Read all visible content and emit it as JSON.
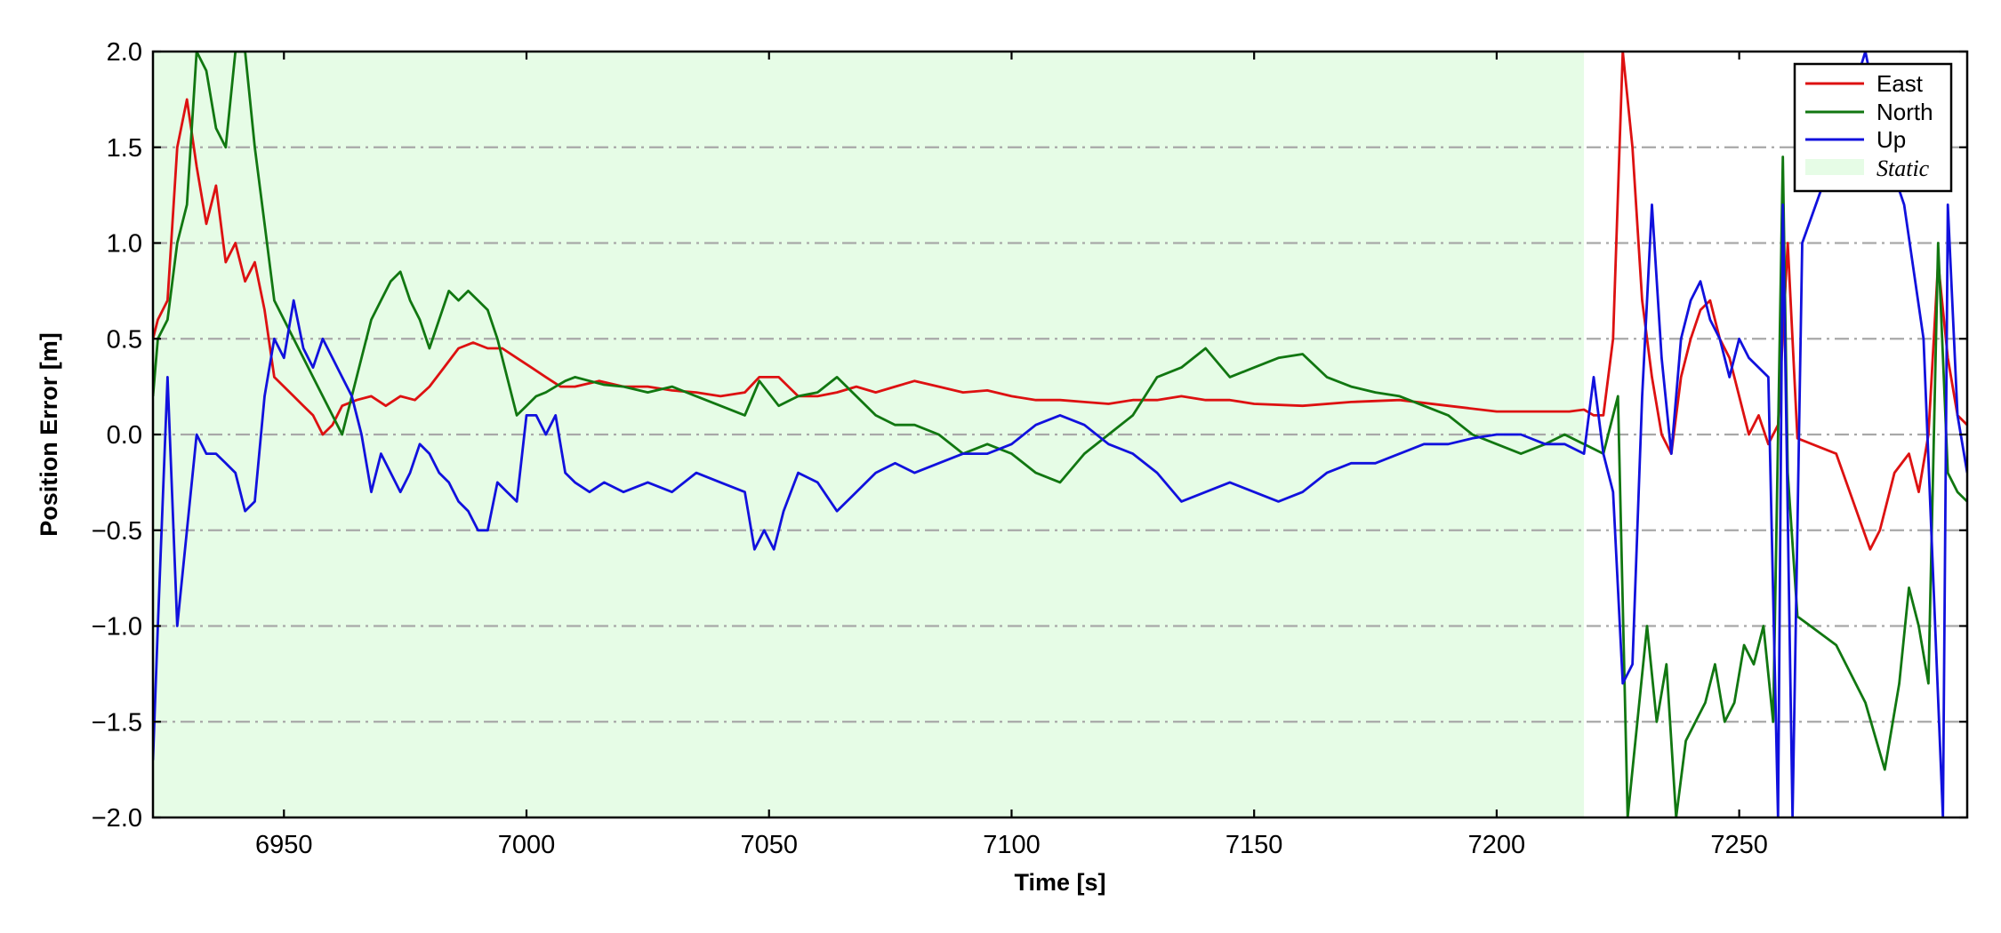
{
  "chart_data": {
    "type": "line",
    "xlabel": "Time [s]",
    "ylabel": "Position Error [m]",
    "xlim": [
      6923,
      7297
    ],
    "ylim": [
      -2.0,
      2.0
    ],
    "xticks": [
      6950,
      7000,
      7050,
      7100,
      7150,
      7200,
      7250
    ],
    "yticks": [
      -2.0,
      -1.5,
      -1.0,
      -0.5,
      0.0,
      0.5,
      1.0,
      1.5,
      2.0
    ],
    "ytick_labels": [
      "−2.0",
      "−1.5",
      "−1.0",
      "−0.5",
      "0.0",
      "0.5",
      "1.0",
      "1.5",
      "2.0"
    ],
    "grid": "horizontal dash-dot",
    "legend_position": "top-right",
    "static_region": {
      "name": "Static",
      "x": [
        6923,
        7218
      ],
      "color": "#e6fce6"
    },
    "series": [
      {
        "name": "East",
        "color": "#dd1111",
        "x": [
          6923,
          6924,
          6926,
          6928,
          6930,
          6932,
          6934,
          6936,
          6938,
          6940,
          6942,
          6944,
          6946,
          6948,
          6950,
          6952,
          6954,
          6956,
          6958,
          6960,
          6962,
          6965,
          6968,
          6971,
          6974,
          6977,
          6980,
          6983,
          6986,
          6989,
          6992,
          6995,
          6998,
          7001,
          7004,
          7007,
          7010,
          7015,
          7020,
          7025,
          7030,
          7035,
          7040,
          7045,
          7048,
          7052,
          7056,
          7060,
          7064,
          7068,
          7072,
          7076,
          7080,
          7085,
          7090,
          7095,
          7100,
          7105,
          7110,
          7115,
          7120,
          7125,
          7130,
          7135,
          7140,
          7145,
          7150,
          7160,
          7170,
          7180,
          7190,
          7200,
          7210,
          7215,
          7218,
          7220,
          7222,
          7224,
          7226,
          7228,
          7230,
          7232,
          7234,
          7236,
          7238,
          7240,
          7242,
          7244,
          7246,
          7248,
          7250,
          7252,
          7254,
          7256,
          7258,
          7260,
          7262,
          7270,
          7277,
          7279,
          7282,
          7285,
          7287,
          7289,
          7291,
          7293,
          7295,
          7297
        ],
        "y": [
          0.5,
          0.6,
          0.7,
          1.5,
          1.75,
          1.4,
          1.1,
          1.3,
          0.9,
          1.0,
          0.8,
          0.9,
          0.65,
          0.3,
          0.25,
          0.2,
          0.15,
          0.1,
          0.0,
          0.05,
          0.15,
          0.18,
          0.2,
          0.15,
          0.2,
          0.18,
          0.25,
          0.35,
          0.45,
          0.48,
          0.45,
          0.45,
          0.4,
          0.35,
          0.3,
          0.25,
          0.25,
          0.28,
          0.25,
          0.25,
          0.23,
          0.22,
          0.2,
          0.22,
          0.3,
          0.3,
          0.2,
          0.2,
          0.22,
          0.25,
          0.22,
          0.25,
          0.28,
          0.25,
          0.22,
          0.23,
          0.2,
          0.18,
          0.18,
          0.17,
          0.16,
          0.18,
          0.18,
          0.2,
          0.18,
          0.18,
          0.16,
          0.15,
          0.17,
          0.18,
          0.15,
          0.12,
          0.12,
          0.12,
          0.13,
          0.1,
          0.1,
          0.5,
          2.0,
          1.5,
          0.7,
          0.3,
          0.0,
          -0.1,
          0.3,
          0.5,
          0.65,
          0.7,
          0.5,
          0.4,
          0.2,
          0.0,
          0.1,
          -0.05,
          0.05,
          1.0,
          -0.02,
          -0.1,
          -0.6,
          -0.5,
          -0.2,
          -0.1,
          -0.3,
          0.0,
          0.9,
          0.4,
          0.1,
          0.05
        ]
      },
      {
        "name": "North",
        "color": "#117711",
        "x": [
          6923,
          6924,
          6926,
          6928,
          6930,
          6932,
          6934,
          6936,
          6938,
          6940,
          6942,
          6944,
          6946,
          6948,
          6950,
          6952,
          6954,
          6956,
          6958,
          6960,
          6962,
          6964,
          6966,
          6968,
          6970,
          6972,
          6974,
          6976,
          6978,
          6980,
          6982,
          6984,
          6986,
          6988,
          6990,
          6992,
          6994,
          6996,
          6998,
          7000,
          7002,
          7004,
          7006,
          7008,
          7010,
          7013,
          7016,
          7020,
          7025,
          7030,
          7035,
          7040,
          7045,
          7048,
          7052,
          7056,
          7060,
          7064,
          7068,
          7072,
          7076,
          7080,
          7085,
          7090,
          7095,
          7100,
          7105,
          7110,
          7115,
          7120,
          7125,
          7130,
          7135,
          7140,
          7145,
          7150,
          7155,
          7160,
          7165,
          7170,
          7175,
          7180,
          7185,
          7190,
          7195,
          7200,
          7205,
          7210,
          7214,
          7218,
          7222,
          7225,
          7227,
          7229,
          7231,
          7233,
          7235,
          7237,
          7239,
          7241,
          7243,
          7245,
          7247,
          7249,
          7251,
          7253,
          7255,
          7257,
          7259,
          7260,
          7262,
          7270,
          7276,
          7280,
          7283,
          7285,
          7287,
          7289,
          7291,
          7293,
          7295,
          7297
        ],
        "y": [
          0.2,
          0.5,
          0.6,
          1.0,
          1.2,
          2.0,
          1.9,
          1.6,
          1.5,
          2.0,
          2.0,
          1.5,
          1.1,
          0.7,
          0.6,
          0.5,
          0.4,
          0.3,
          0.2,
          0.1,
          0.0,
          0.2,
          0.4,
          0.6,
          0.7,
          0.8,
          0.85,
          0.7,
          0.6,
          0.45,
          0.6,
          0.75,
          0.7,
          0.75,
          0.7,
          0.65,
          0.5,
          0.3,
          0.1,
          0.15,
          0.2,
          0.22,
          0.25,
          0.28,
          0.3,
          0.28,
          0.26,
          0.25,
          0.22,
          0.25,
          0.2,
          0.15,
          0.1,
          0.28,
          0.15,
          0.2,
          0.22,
          0.3,
          0.2,
          0.1,
          0.05,
          0.05,
          0.0,
          -0.1,
          -0.05,
          -0.1,
          -0.2,
          -0.25,
          -0.1,
          0.0,
          0.1,
          0.3,
          0.35,
          0.45,
          0.3,
          0.35,
          0.4,
          0.42,
          0.3,
          0.25,
          0.22,
          0.2,
          0.15,
          0.1,
          0.0,
          -0.05,
          -0.1,
          -0.05,
          0.0,
          -0.05,
          -0.1,
          0.2,
          -2.0,
          -1.5,
          -1.0,
          -1.5,
          -1.2,
          -2.0,
          -1.6,
          -1.5,
          -1.4,
          -1.2,
          -1.5,
          -1.4,
          -1.1,
          -1.2,
          -1.0,
          -1.5,
          1.45,
          -0.2,
          -0.95,
          -1.1,
          -1.4,
          -1.75,
          -1.3,
          -0.8,
          -1.0,
          -1.3,
          1.0,
          -0.2,
          -0.3,
          -0.35
        ]
      },
      {
        "name": "Up",
        "color": "#1111dd",
        "x": [
          6923,
          6924,
          6926,
          6928,
          6930,
          6932,
          6934,
          6936,
          6938,
          6940,
          6942,
          6944,
          6946,
          6948,
          6950,
          6952,
          6954,
          6956,
          6958,
          6960,
          6962,
          6964,
          6966,
          6968,
          6970,
          6972,
          6974,
          6976,
          6978,
          6980,
          6982,
          6984,
          6986,
          6988,
          6990,
          6992,
          6994,
          6996,
          6998,
          7000,
          7002,
          7004,
          7006,
          7008,
          7010,
          7013,
          7016,
          7020,
          7025,
          7030,
          7035,
          7040,
          7045,
          7047,
          7049,
          7051,
          7053,
          7056,
          7060,
          7064,
          7068,
          7072,
          7076,
          7080,
          7085,
          7090,
          7095,
          7100,
          7105,
          7110,
          7115,
          7120,
          7125,
          7130,
          7135,
          7140,
          7145,
          7150,
          7155,
          7160,
          7165,
          7170,
          7175,
          7180,
          7185,
          7190,
          7195,
          7200,
          7205,
          7210,
          7214,
          7218,
          7220,
          7222,
          7224,
          7226,
          7228,
          7230,
          7232,
          7234,
          7236,
          7238,
          7240,
          7242,
          7244,
          7246,
          7248,
          7250,
          7252,
          7254,
          7256,
          7258,
          7259,
          7261,
          7263,
          7270,
          7276,
          7280,
          7284,
          7288,
          7292,
          7293,
          7295,
          7297
        ],
        "y": [
          -1.7,
          -1.0,
          0.3,
          -1.0,
          -0.5,
          0.0,
          -0.1,
          -0.1,
          -0.15,
          -0.2,
          -0.4,
          -0.35,
          0.2,
          0.5,
          0.4,
          0.7,
          0.45,
          0.35,
          0.5,
          0.4,
          0.3,
          0.2,
          0.0,
          -0.3,
          -0.1,
          -0.2,
          -0.3,
          -0.2,
          -0.05,
          -0.1,
          -0.2,
          -0.25,
          -0.35,
          -0.4,
          -0.5,
          -0.5,
          -0.25,
          -0.3,
          -0.35,
          0.1,
          0.1,
          0.0,
          0.1,
          -0.2,
          -0.25,
          -0.3,
          -0.25,
          -0.3,
          -0.25,
          -0.3,
          -0.2,
          -0.25,
          -0.3,
          -0.6,
          -0.5,
          -0.6,
          -0.4,
          -0.2,
          -0.25,
          -0.4,
          -0.3,
          -0.2,
          -0.15,
          -0.2,
          -0.15,
          -0.1,
          -0.1,
          -0.05,
          0.05,
          0.1,
          0.05,
          -0.05,
          -0.1,
          -0.2,
          -0.35,
          -0.3,
          -0.25,
          -0.3,
          -0.35,
          -0.3,
          -0.2,
          -0.15,
          -0.15,
          -0.1,
          -0.05,
          -0.05,
          -0.02,
          0.0,
          0.0,
          -0.05,
          -0.05,
          -0.1,
          0.3,
          -0.1,
          -0.3,
          -1.3,
          -1.2,
          0.2,
          1.2,
          0.4,
          -0.1,
          0.5,
          0.7,
          0.8,
          0.6,
          0.5,
          0.3,
          0.5,
          0.4,
          0.35,
          0.3,
          -2.0,
          1.2,
          -2.0,
          1.0,
          1.5,
          2.0,
          1.5,
          1.2,
          0.5,
          -2.0,
          1.2,
          0.1,
          -0.2
        ]
      }
    ]
  }
}
